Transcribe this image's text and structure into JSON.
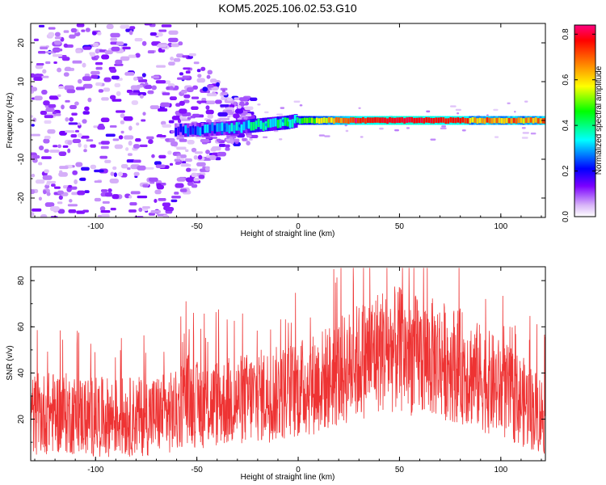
{
  "title": "KOM5.2025.106.02.53.G10",
  "chart_data": [
    {
      "type": "heatmap",
      "xlabel": "Height of straight line (km)",
      "ylabel": "Frequency (Hz)",
      "xlim": [
        -132,
        122
      ],
      "ylim": [
        -25,
        25
      ],
      "xticks": [
        -100,
        -50,
        0,
        50,
        100
      ],
      "yticks": [
        -20,
        -10,
        0,
        10,
        20
      ],
      "colorbar": {
        "label": "Normalized spectral amplitude",
        "range": [
          0.0,
          0.84
        ],
        "ticks": [
          0.0,
          0.2,
          0.4,
          0.6,
          0.8
        ],
        "colormap": [
          "#ffffff",
          "#d8b4f8",
          "#7a00ff",
          "#0000ff",
          "#00ffff",
          "#00ff00",
          "#ffff00",
          "#ff8000",
          "#ff0000",
          "#ff0080"
        ]
      },
      "ridge_frequency_hz": [
        {
          "x": -55,
          "y": -2.5
        },
        {
          "x": -45,
          "y": -2.3
        },
        {
          "x": -35,
          "y": -2.0
        },
        {
          "x": -25,
          "y": -1.5
        },
        {
          "x": -15,
          "y": -1.0
        },
        {
          "x": -5,
          "y": -0.5
        },
        {
          "x": 0,
          "y": 0.0
        },
        {
          "x": 50,
          "y": 0.0
        },
        {
          "x": 120,
          "y": 0.0
        }
      ]
    },
    {
      "type": "line",
      "xlabel": "Height of straight line (km)",
      "ylabel": "SNR (v/v)",
      "xlim": [
        -132,
        122
      ],
      "ylim": [
        2,
        86
      ],
      "xticks": [
        -100,
        -50,
        0,
        50,
        100
      ],
      "yticks": [
        20,
        40,
        60,
        80
      ],
      "color": "#ee3333",
      "series": [
        {
          "x": [
            -130,
            -120,
            -110,
            -100,
            -90,
            -80,
            -70,
            -60,
            -55,
            -50,
            -40,
            -30,
            -20,
            -10,
            0,
            10,
            20,
            30,
            40,
            50,
            60,
            70,
            80,
            90,
            100,
            110,
            120
          ],
          "values": [
            22,
            23,
            22,
            21,
            21,
            21,
            22,
            23,
            30,
            26,
            27,
            28,
            30,
            31,
            33,
            36,
            40,
            45,
            50,
            50,
            47,
            46,
            43,
            38,
            33,
            28,
            22
          ]
        }
      ]
    }
  ]
}
